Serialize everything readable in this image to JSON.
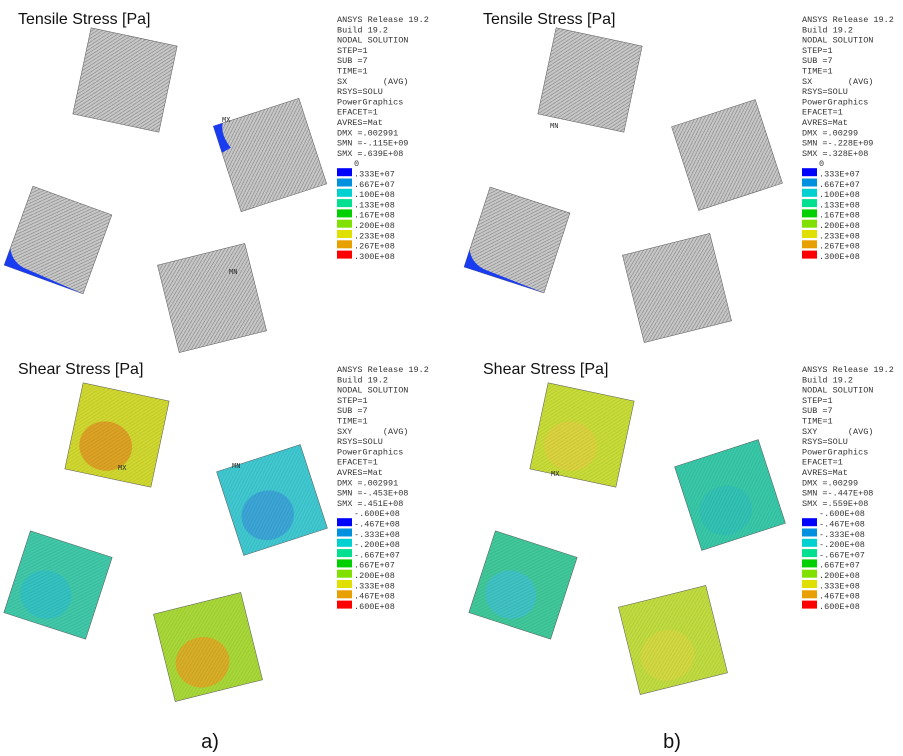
{
  "panels": [
    {
      "title": "Tensile Stress [Pa]",
      "info": [
        "ANSYS Release 19.2",
        "Build 19.2",
        "NODAL SOLUTION",
        "STEP=1",
        "SUB =7",
        "TIME=1",
        "SX       (AVG)",
        "RSYS=SOLU",
        "PowerGraphics",
        "EFACET=1",
        "AVRES=Mat",
        "DMX =.002991",
        "SMN =-.115E+09",
        "SMX =.639E+08"
      ],
      "legend": [
        "0",
        ".333E+07",
        ".667E+07",
        ".100E+08",
        ".133E+08",
        ".167E+08",
        ".200E+08",
        ".233E+08",
        ".267E+08",
        ".300E+08"
      ],
      "markers": [
        "MX",
        "MN"
      ]
    },
    {
      "title": "Tensile Stress [Pa]",
      "info": [
        "ANSYS Release 19.2",
        "Build 19.2",
        "NODAL SOLUTION",
        "STEP=1",
        "SUB =7",
        "TIME=1",
        "SX       (AVG)",
        "RSYS=SOLU",
        "PowerGraphics",
        "EFACET=1",
        "AVRES=Mat",
        "DMX =.00299",
        "SMN =-.228E+09",
        "SMX =.328E+08"
      ],
      "legend": [
        "0",
        ".333E+07",
        ".667E+07",
        ".100E+08",
        ".133E+08",
        ".167E+08",
        ".200E+08",
        ".233E+08",
        ".267E+08",
        ".300E+08"
      ],
      "markers": [
        "MN"
      ]
    },
    {
      "title": "Shear Stress [Pa]",
      "info": [
        "ANSYS Release 19.2",
        "Build 19.2",
        "NODAL SOLUTION",
        "STEP=1",
        "SUB =7",
        "TIME=1",
        "SXY      (AVG)",
        "RSYS=SOLU",
        "PowerGraphics",
        "EFACET=1",
        "AVRES=Mat",
        "DMX =.002991",
        "SMN =-.453E+08",
        "SMX =.451E+08"
      ],
      "legend": [
        "-.600E+08",
        "-.467E+08",
        "-.333E+08",
        "-.200E+08",
        "-.667E+07",
        ".667E+07",
        ".200E+08",
        ".333E+08",
        ".467E+08",
        ".600E+08"
      ],
      "markers": [
        "MX",
        "MN"
      ]
    },
    {
      "title": "Shear Stress [Pa]",
      "info": [
        "ANSYS Release 19.2",
        "Build 19.2",
        "NODAL SOLUTION",
        "STEP=1",
        "SUB =7",
        "TIME=1",
        "SXY      (AVG)",
        "RSYS=SOLU",
        "PowerGraphics",
        "EFACET=1",
        "AVRES=Mat",
        "DMX =.00299",
        "SMN =-.447E+08",
        "SMX =.559E+08"
      ],
      "legend": [
        "-.600E+08",
        "-.467E+08",
        "-.333E+08",
        "-.200E+08",
        "-.667E+07",
        ".667E+07",
        ".200E+08",
        ".333E+08",
        ".467E+08",
        ".600E+08"
      ],
      "markers": [
        "MX"
      ]
    }
  ],
  "captions": [
    "a)",
    "b)"
  ]
}
